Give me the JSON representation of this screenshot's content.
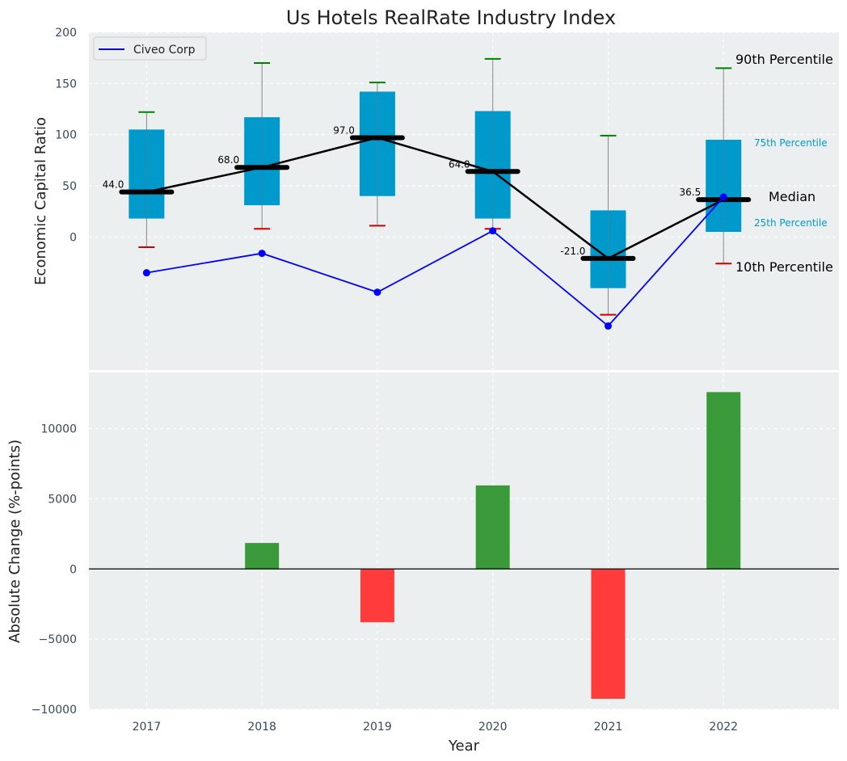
{
  "chart_data": [
    {
      "type": "box",
      "title": "Us Hotels RealRate Industry Index",
      "ylabel": "Economic Capital Ratio",
      "ylim": [
        -130,
        200
      ],
      "yticks": [
        0,
        50,
        100,
        150,
        200
      ],
      "categories": [
        "2017",
        "2018",
        "2019",
        "2020",
        "2021",
        "2022"
      ],
      "p10": [
        -10,
        8,
        11,
        8,
        -76,
        -26
      ],
      "p25": [
        18,
        31,
        40,
        18,
        -50,
        5
      ],
      "median": [
        44.0,
        68.0,
        97.0,
        64.0,
        -21.0,
        36.5
      ],
      "p75": [
        105,
        117,
        142,
        123,
        26,
        95
      ],
      "p90": [
        122,
        170,
        151,
        174,
        99,
        165
      ],
      "median_labels": [
        "44.0",
        "68.0",
        "97.0",
        "64.0",
        "-21.0",
        "36.5"
      ],
      "series": [
        {
          "name": "Civeo Corp",
          "values": [
            -35,
            -16,
            -54,
            6,
            -87,
            39
          ],
          "color": "#0000ff"
        }
      ],
      "annotations": {
        "p90": "90th Percentile",
        "p75": "75th Percentile",
        "median": "Median",
        "p25": "25th Percentile",
        "p10": "10th Percentile"
      },
      "legend_position": "upper-left",
      "colors": {
        "box": "#0099cc",
        "median": "#000000",
        "p90_cap": "#008000",
        "p10_cap": "#cc0000",
        "background": "#ebeff0"
      }
    },
    {
      "type": "bar",
      "xlabel": "Year",
      "ylabel": "Absolute Change (%-points)",
      "ylim": [
        -10000,
        14000
      ],
      "yticks": [
        -10000,
        -5000,
        0,
        5000,
        10000
      ],
      "ytick_labels": [
        "−10000",
        "−5000",
        "0",
        "5000",
        "10000"
      ],
      "categories": [
        "2017",
        "2018",
        "2019",
        "2020",
        "2021",
        "2022"
      ],
      "values": [
        0,
        1850,
        -3800,
        5950,
        -9250,
        12600
      ],
      "colors": {
        "positive": "#3a9a3a",
        "negative": "#ff3b3b"
      }
    }
  ]
}
